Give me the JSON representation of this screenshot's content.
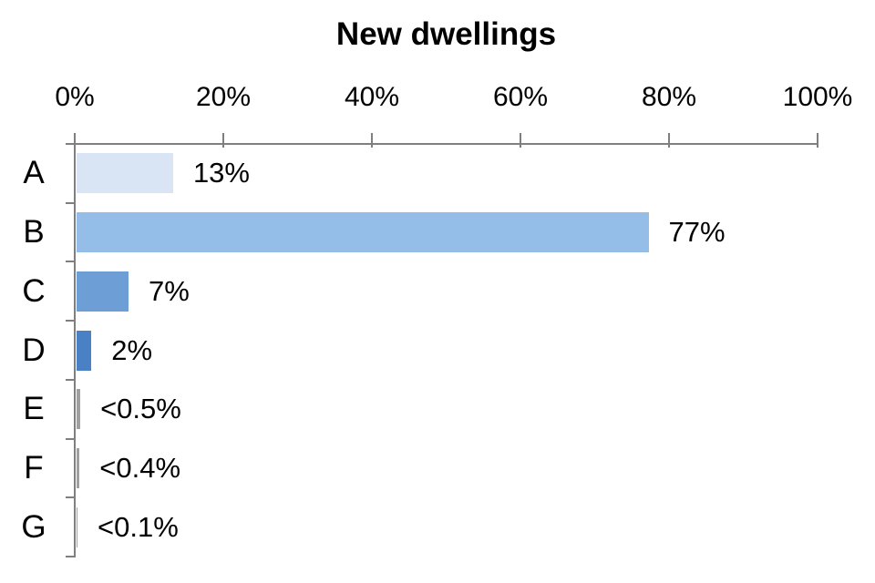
{
  "chart_data": {
    "type": "bar",
    "orientation": "horizontal",
    "title": "New dwellings",
    "categories": [
      "A",
      "B",
      "C",
      "D",
      "E",
      "F",
      "G"
    ],
    "values": [
      13,
      77,
      7,
      2,
      0.5,
      0.4,
      0.1
    ],
    "value_labels": [
      "13%",
      "77%",
      "7%",
      "2%",
      "<0.5%",
      "<0.4%",
      "<0.1%"
    ],
    "bar_colors": [
      "#d9e5f4",
      "#94bee8",
      "#6d9ed5",
      "#4a80c4",
      "#a0a0a0",
      "#a0a0a0",
      "#a0a0a0"
    ],
    "x_tick_labels": [
      "0%",
      "20%",
      "40%",
      "60%",
      "80%",
      "100%"
    ],
    "xlim": [
      0,
      100
    ],
    "x_axis_position": "top",
    "grid": false,
    "legend": false,
    "axis_color": "#7f7f7f",
    "text_color": "#000000"
  }
}
